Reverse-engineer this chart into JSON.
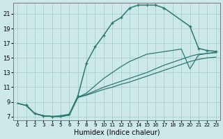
{
  "xlabel": "Humidex (Indice chaleur)",
  "bg_color": "#cce8e8",
  "grid_color": "#aad0d0",
  "line_color": "#2d7a6e",
  "xlim": [
    -0.5,
    23.5
  ],
  "ylim": [
    6.5,
    22.5
  ],
  "yticks": [
    7,
    9,
    11,
    13,
    15,
    17,
    19,
    21
  ],
  "xticks": [
    0,
    1,
    2,
    3,
    4,
    5,
    6,
    7,
    8,
    9,
    10,
    11,
    12,
    13,
    14,
    15,
    16,
    17,
    18,
    19,
    20,
    21,
    22,
    23
  ],
  "curve_main_x": [
    1,
    2,
    3,
    4,
    5,
    6,
    7,
    8,
    9,
    10,
    11,
    12,
    13,
    14,
    15,
    16,
    17,
    20,
    21,
    22,
    23
  ],
  "curve_main_y": [
    8.6,
    7.4,
    7.1,
    7.0,
    7.1,
    7.3,
    9.8,
    14.3,
    16.5,
    18.1,
    19.8,
    20.5,
    21.8,
    22.2,
    22.2,
    22.2,
    21.8,
    19.3,
    16.3,
    16.0,
    15.9
  ],
  "curve_a_x": [
    0,
    1,
    2,
    3,
    4,
    5,
    6,
    7,
    8,
    9,
    10,
    11,
    12,
    13,
    14,
    15,
    16,
    17,
    18,
    19,
    20,
    21,
    22,
    23
  ],
  "curve_a_y": [
    8.8,
    8.5,
    7.4,
    7.1,
    7.0,
    7.0,
    7.2,
    9.6,
    10.0,
    10.5,
    11.0,
    11.4,
    11.8,
    12.2,
    12.6,
    13.0,
    13.5,
    14.0,
    14.4,
    14.8,
    15.2,
    15.5,
    15.6,
    15.7
  ],
  "curve_b_x": [
    0,
    1,
    2,
    3,
    4,
    5,
    6,
    7,
    8,
    9,
    10,
    11,
    12,
    13,
    14,
    15,
    16,
    17,
    18,
    19,
    20,
    21,
    22,
    23
  ],
  "curve_b_y": [
    8.8,
    8.5,
    7.4,
    7.1,
    7.0,
    7.0,
    7.2,
    9.6,
    9.9,
    10.3,
    10.7,
    11.0,
    11.4,
    11.7,
    12.1,
    12.5,
    12.9,
    13.3,
    13.7,
    14.1,
    14.5,
    14.8,
    15.0,
    15.1
  ],
  "curve_c_x": [
    0,
    1,
    2,
    3,
    4,
    5,
    6,
    7,
    8,
    9,
    10,
    11,
    12,
    13,
    14,
    15,
    19,
    20,
    21,
    22,
    23
  ],
  "curve_c_y": [
    8.8,
    8.5,
    7.4,
    7.1,
    7.0,
    7.0,
    7.2,
    9.6,
    10.2,
    11.2,
    12.2,
    13.0,
    13.8,
    14.5,
    15.0,
    15.5,
    16.2,
    13.5,
    15.4,
    15.6,
    15.8
  ]
}
